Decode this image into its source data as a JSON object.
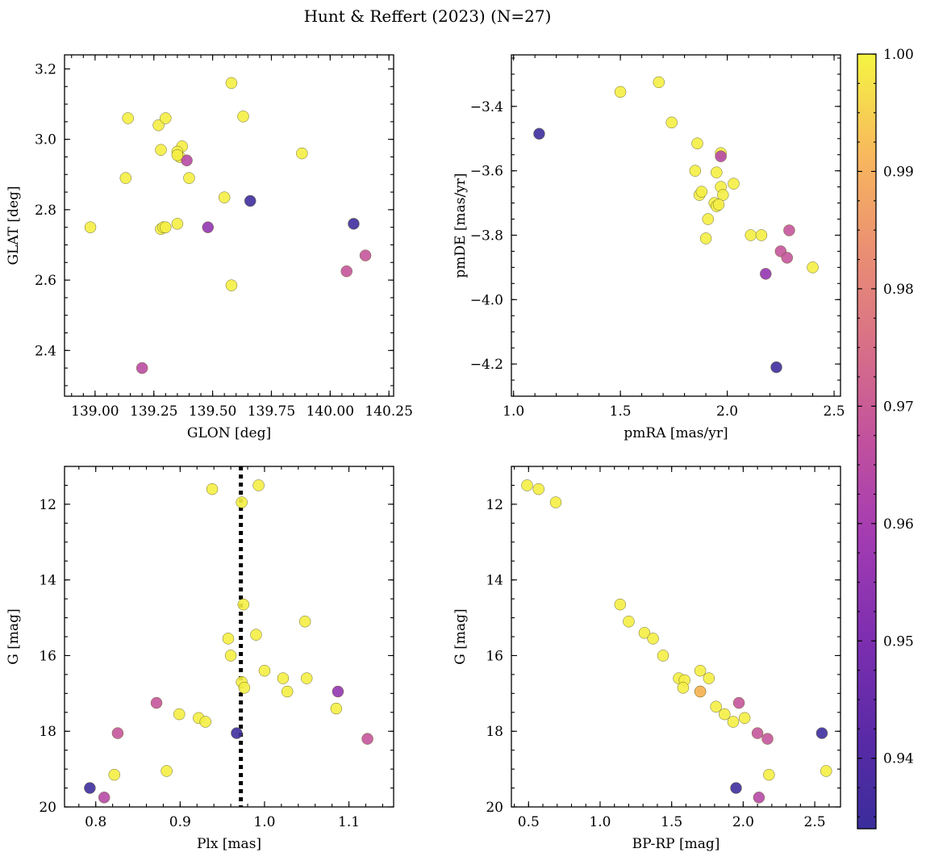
{
  "title": "Hunt & Reffert (2023) (N=27)",
  "colorbar": {
    "min": 0.934,
    "max": 1.0,
    "ticks": [
      0.94,
      0.95,
      0.96,
      0.97,
      0.98,
      0.99,
      1.0
    ],
    "tick_labels": [
      "0.94",
      "0.95",
      "0.96",
      "0.97",
      "0.98",
      "0.99",
      "1.00"
    ],
    "colormap": "plasma"
  },
  "chart_data": [
    {
      "type": "scatter",
      "xlabel": "GLON [deg]",
      "ylabel": "GLAT [deg]",
      "xlim": [
        138.87,
        140.27
      ],
      "ylim": [
        2.27,
        3.24
      ],
      "y_inverted": false,
      "xticks": [
        139.0,
        139.25,
        139.5,
        139.75,
        140.0,
        140.25
      ],
      "xtick_labels": [
        "139.00",
        "139.25",
        "139.50",
        "139.75",
        "140.00",
        "140.25"
      ],
      "yticks": [
        2.4,
        2.6,
        2.8,
        3.0,
        3.2
      ],
      "ytick_labels": [
        "2.4",
        "2.6",
        "2.8",
        "3.0",
        "3.2"
      ],
      "x": [
        138.98,
        139.13,
        139.14,
        139.27,
        139.28,
        139.3,
        139.28,
        139.35,
        139.37,
        139.36,
        139.35,
        139.4,
        139.39,
        139.29,
        139.35,
        139.2,
        139.48,
        139.58,
        139.55,
        139.63,
        139.58,
        139.66,
        139.88,
        140.1,
        140.07,
        140.15,
        139.3
      ],
      "y": [
        2.75,
        2.89,
        3.06,
        3.04,
        2.97,
        3.06,
        2.745,
        2.76,
        2.98,
        2.95,
        2.965,
        2.89,
        2.94,
        2.75,
        2.955,
        2.35,
        2.75,
        3.16,
        2.835,
        3.065,
        2.585,
        2.825,
        2.96,
        2.76,
        2.625,
        2.67,
        2.75
      ],
      "c": [
        0.999,
        0.999,
        0.999,
        0.999,
        0.999,
        0.999,
        0.999,
        0.999,
        0.999,
        0.999,
        0.999,
        0.999,
        0.964,
        0.999,
        0.999,
        0.965,
        0.955,
        0.999,
        0.999,
        0.999,
        0.999,
        0.935,
        0.999,
        0.935,
        0.968,
        0.968,
        0.999
      ]
    },
    {
      "type": "scatter",
      "xlabel": "pmRA [mas/yr]",
      "ylabel": "pmDE [mas/yr]",
      "xlim": [
        0.99,
        2.53
      ],
      "ylim": [
        -4.3,
        -3.24
      ],
      "y_inverted": false,
      "xticks": [
        1.0,
        1.5,
        2.0,
        2.5
      ],
      "xtick_labels": [
        "1.0",
        "1.5",
        "2.0",
        "2.5"
      ],
      "yticks": [
        -4.2,
        -4.0,
        -3.8,
        -3.6,
        -3.4
      ],
      "ytick_labels": [
        "−4.2",
        "−4.0",
        "−3.8",
        "−3.6",
        "−3.4"
      ],
      "x": [
        1.12,
        1.5,
        1.68,
        1.74,
        1.86,
        1.85,
        1.97,
        1.97,
        1.87,
        1.88,
        1.95,
        1.97,
        1.91,
        1.98,
        2.03,
        1.94,
        1.95,
        1.9,
        2.11,
        2.16,
        2.29,
        2.25,
        2.28,
        2.18,
        2.4,
        2.23,
        1.96
      ],
      "y": [
        -3.485,
        -3.355,
        -3.325,
        -3.45,
        -3.515,
        -3.6,
        -3.545,
        -3.555,
        -3.675,
        -3.665,
        -3.605,
        -3.65,
        -3.75,
        -3.675,
        -3.64,
        -3.7,
        -3.71,
        -3.81,
        -3.8,
        -3.8,
        -3.785,
        -3.85,
        -3.87,
        -3.92,
        -3.9,
        -4.21,
        -3.705
      ],
      "c": [
        0.935,
        0.999,
        0.999,
        0.999,
        0.999,
        0.999,
        0.999,
        0.964,
        0.999,
        0.999,
        0.999,
        0.999,
        0.999,
        0.999,
        0.999,
        0.999,
        0.999,
        0.999,
        0.999,
        0.999,
        0.968,
        0.968,
        0.968,
        0.955,
        0.999,
        0.935,
        0.999
      ]
    },
    {
      "type": "scatter",
      "xlabel": "Plx [mas]",
      "ylabel": "G [mag]",
      "xlim": [
        0.763,
        1.153
      ],
      "ylim": [
        20.0,
        11.0
      ],
      "y_inverted": true,
      "xticks": [
        0.8,
        0.9,
        1.0,
        1.1
      ],
      "xtick_labels": [
        "0.8",
        "0.9",
        "1.0",
        "1.1"
      ],
      "yticks": [
        12,
        14,
        16,
        18,
        20
      ],
      "ytick_labels": [
        "12",
        "14",
        "16",
        "18",
        "20"
      ],
      "vline_x": 0.972,
      "x": [
        0.938,
        0.993,
        0.973,
        0.975,
        0.957,
        0.99,
        1.048,
        0.96,
        1.0,
        0.973,
        0.976,
        1.022,
        1.05,
        1.027,
        0.872,
        1.087,
        0.899,
        0.922,
        0.93,
        1.085,
        0.826,
        0.967,
        1.122,
        0.822,
        0.884,
        0.793,
        0.81
      ],
      "y": [
        11.6,
        11.5,
        11.95,
        14.65,
        15.55,
        15.45,
        15.1,
        16.0,
        16.4,
        16.7,
        16.85,
        16.6,
        16.6,
        16.95,
        17.25,
        16.95,
        17.55,
        17.65,
        17.75,
        17.4,
        18.05,
        18.05,
        18.2,
        19.15,
        19.05,
        19.5,
        19.75
      ],
      "c": [
        0.999,
        0.999,
        0.999,
        0.999,
        0.999,
        0.999,
        0.999,
        0.999,
        0.999,
        0.999,
        0.999,
        0.999,
        0.999,
        0.999,
        0.968,
        0.955,
        0.999,
        0.999,
        0.999,
        0.999,
        0.968,
        0.935,
        0.968,
        0.999,
        0.999,
        0.935,
        0.964
      ]
    },
    {
      "type": "scatter",
      "xlabel": "BP-RP [mag]",
      "ylabel": "G [mag]",
      "xlim": [
        0.38,
        2.68
      ],
      "ylim": [
        20.0,
        11.0
      ],
      "y_inverted": true,
      "xticks": [
        0.5,
        1.0,
        1.5,
        2.0,
        2.5
      ],
      "xtick_labels": [
        "0.5",
        "1.0",
        "1.5",
        "2.0",
        "2.5"
      ],
      "yticks": [
        12,
        14,
        16,
        18,
        20
      ],
      "ytick_labels": [
        "12",
        "14",
        "16",
        "18",
        "20"
      ],
      "x": [
        0.49,
        0.57,
        0.69,
        1.14,
        1.2,
        1.31,
        1.37,
        1.44,
        1.55,
        1.59,
        1.58,
        1.7,
        1.76,
        1.7,
        1.97,
        1.81,
        1.87,
        1.93,
        2.01,
        2.1,
        2.17,
        2.55,
        1.95,
        2.18,
        2.58,
        2.11,
        1.7
      ],
      "y": [
        11.5,
        11.6,
        11.95,
        14.65,
        15.1,
        15.4,
        15.55,
        16.0,
        16.6,
        16.65,
        16.85,
        16.4,
        16.6,
        16.95,
        17.25,
        17.35,
        17.55,
        17.75,
        17.65,
        18.05,
        18.2,
        18.05,
        19.5,
        19.15,
        19.05,
        19.75,
        16.95
      ],
      "c": [
        0.999,
        0.999,
        0.999,
        0.999,
        0.999,
        0.999,
        0.999,
        0.999,
        0.999,
        0.999,
        0.999,
        0.999,
        0.999,
        0.999,
        0.968,
        0.999,
        0.999,
        0.999,
        0.999,
        0.968,
        0.968,
        0.935,
        0.935,
        0.999,
        0.999,
        0.964,
        0.99
      ]
    }
  ]
}
